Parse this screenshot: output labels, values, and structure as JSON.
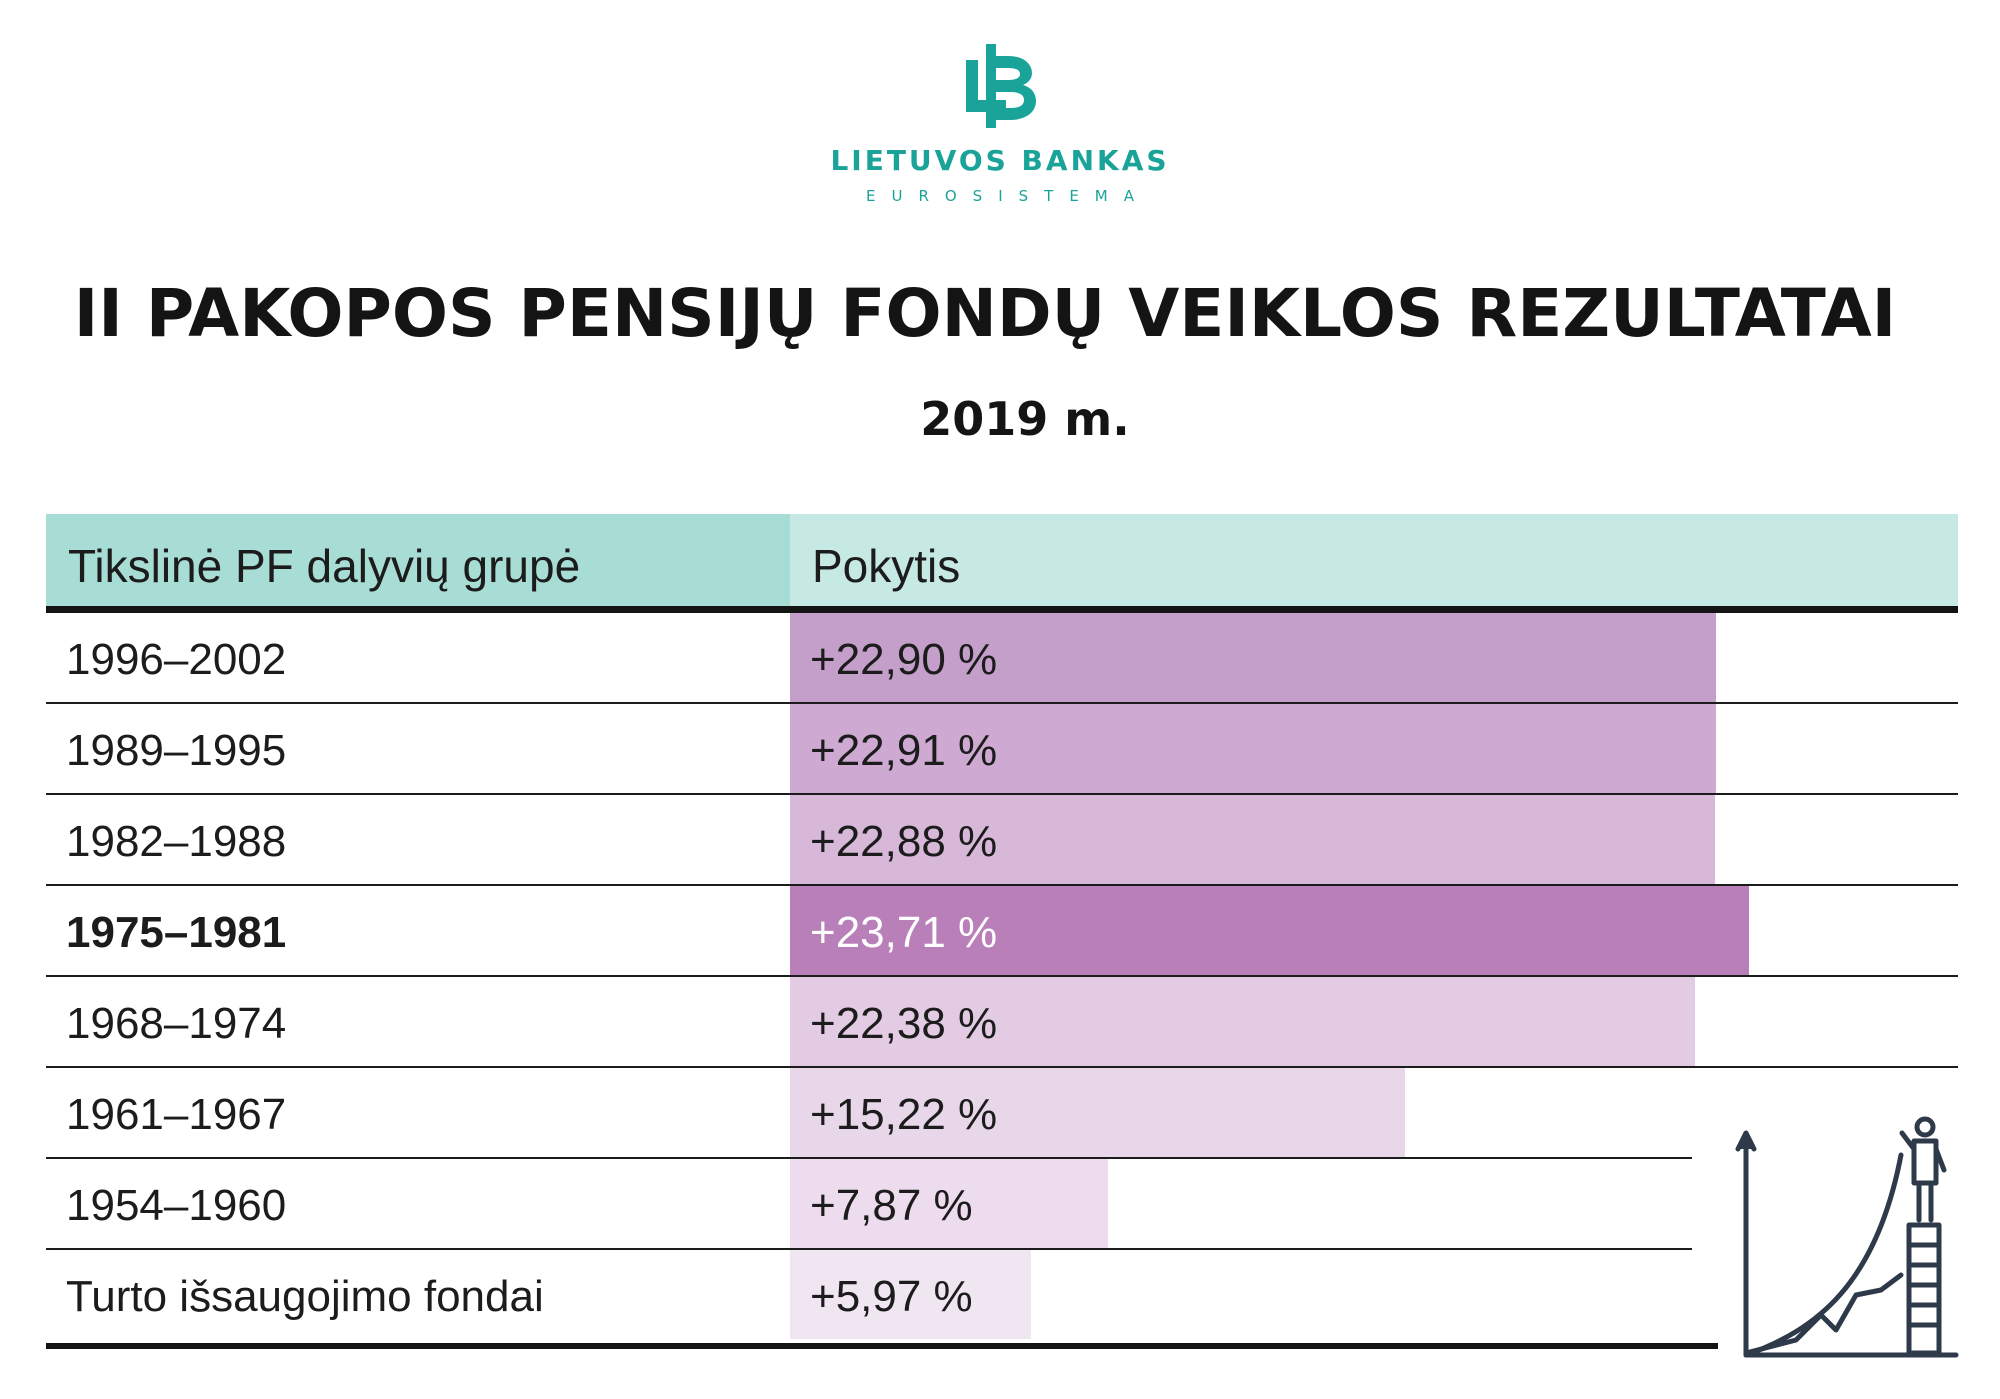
{
  "logo": {
    "name": "LIETUVOS BANKAS",
    "subtitle": "EUROSISTEMA",
    "brand_color": "#1aa398"
  },
  "header": {
    "title": "II PAKOPOS PENSIJŲ FONDŲ VEIKLOS REZULTATAI",
    "subtitle": "2019 m."
  },
  "chart_data": {
    "type": "bar",
    "orientation": "horizontal",
    "title": "II PAKOPOS PENSIJŲ FONDŲ VEIKLOS REZULTATAI",
    "subtitle": "2019 m.",
    "column_headers": [
      "Tikslinė PF dalyvių grupė",
      "Pokytis"
    ],
    "categories": [
      "1996–2002",
      "1989–1995",
      "1982–1988",
      "1975–1981",
      "1968–1974",
      "1961–1967",
      "1954–1960",
      "Turto išsaugojimo fondai"
    ],
    "values": [
      22.9,
      22.91,
      22.88,
      23.71,
      22.38,
      15.22,
      7.87,
      5.97
    ],
    "value_labels": [
      "+22,90 %",
      "+22,91 %",
      "+22,88 %",
      "+23,71 %",
      "+22,38 %",
      "+15,22 %",
      "+7,87 %",
      "+5,97 %"
    ],
    "highlighted": "1975–1981",
    "bar_colors": [
      "#c49fca",
      "#ceaad3",
      "#d7b8d8",
      "#b87fb9",
      "#e3cce3",
      "#e8d7e9",
      "#eddcee",
      "#f0e6f1"
    ],
    "header_colors": [
      "#a8ddd6",
      "#c6e9e4"
    ]
  },
  "icons": {
    "logo": "lietuvos-bankas-logo",
    "illustration": "growth-chart-ladder-person-icon"
  }
}
